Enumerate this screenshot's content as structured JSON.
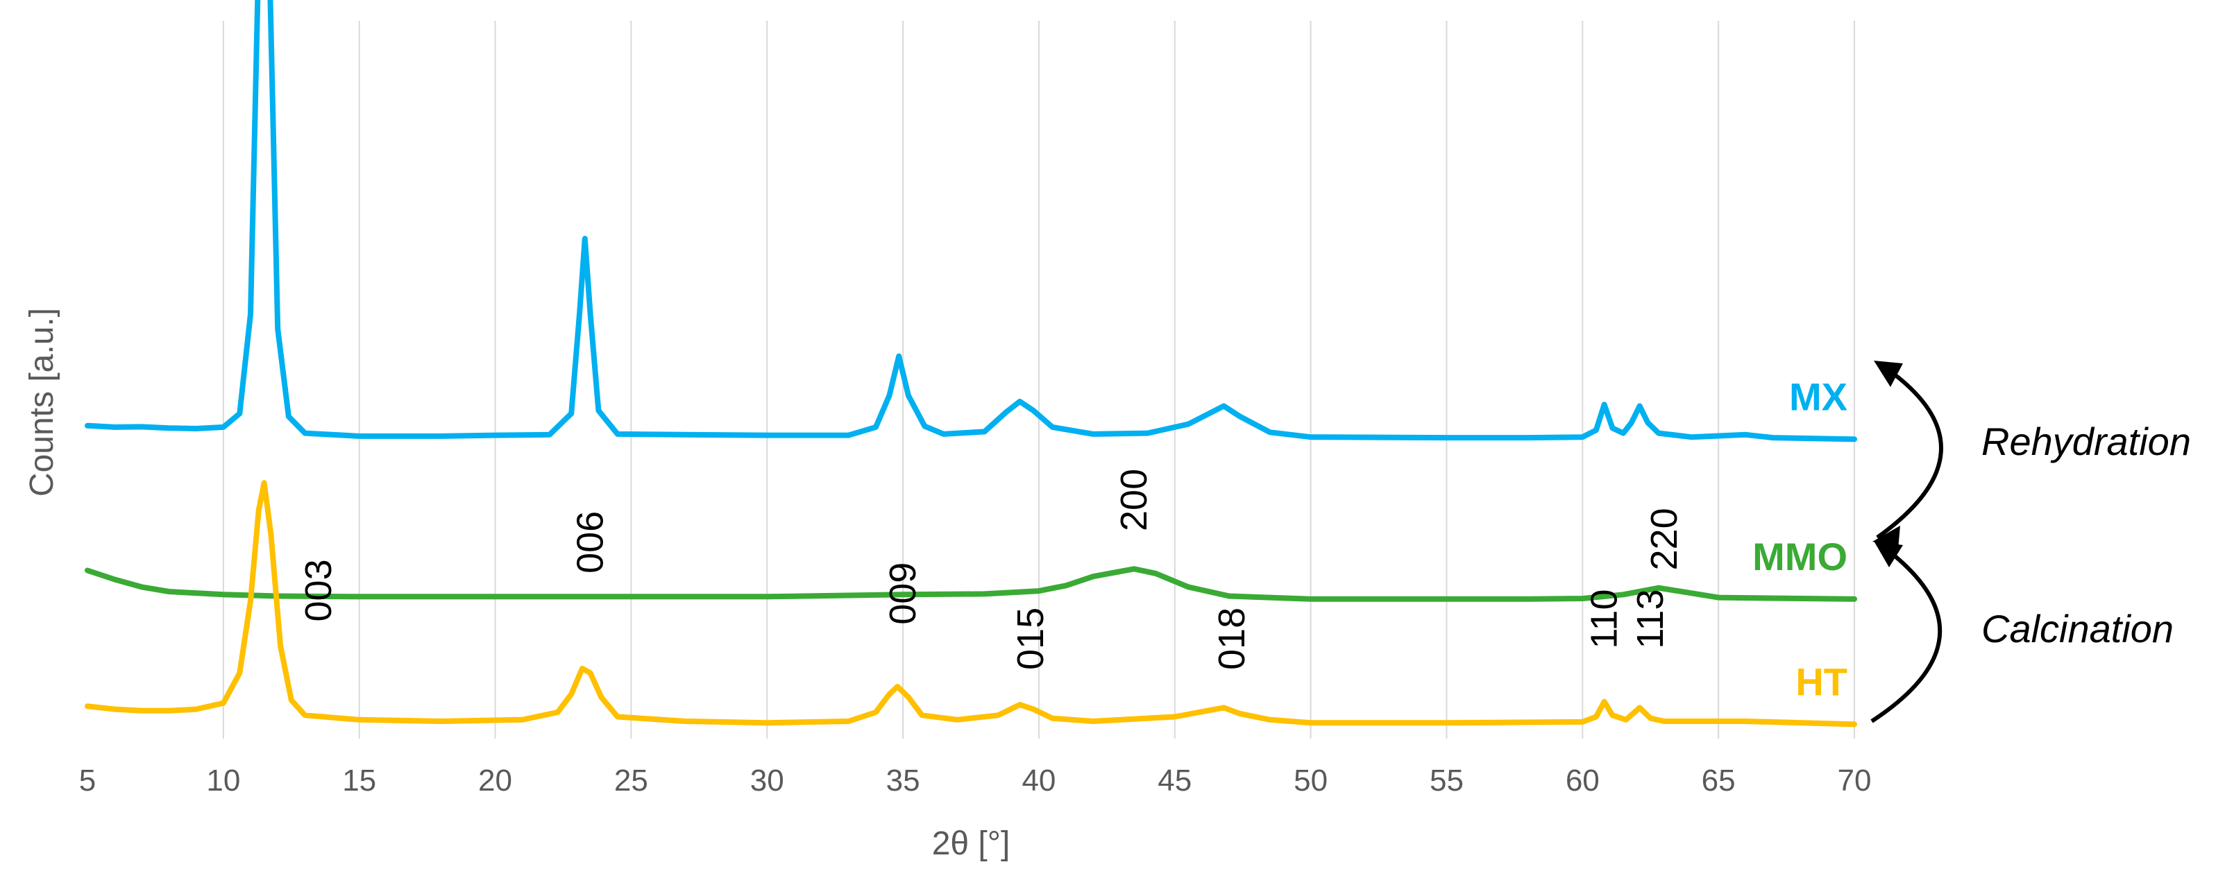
{
  "chart_data": {
    "type": "line",
    "xlabel": "2θ [°]",
    "ylabel": "Counts [a.u.]",
    "xlim": [
      5,
      70
    ],
    "x_ticks": [
      5,
      10,
      15,
      20,
      25,
      30,
      35,
      40,
      45,
      50,
      55,
      60,
      65,
      70
    ],
    "grid": "vertical",
    "y_ticks_shown": false,
    "series": [
      {
        "name": "MX",
        "color": "#00b0f0",
        "points": [
          [
            5,
            0.98
          ],
          [
            6,
            0.975
          ],
          [
            7,
            0.976
          ],
          [
            8,
            0.972
          ],
          [
            9,
            0.97
          ],
          [
            10,
            0.975
          ],
          [
            10.6,
            1.02
          ],
          [
            11,
            1.35
          ],
          [
            11.3,
            2.55
          ],
          [
            11.5,
            3.1
          ],
          [
            11.7,
            2.5
          ],
          [
            12,
            1.3
          ],
          [
            12.4,
            1.01
          ],
          [
            13,
            0.955
          ],
          [
            15,
            0.945
          ],
          [
            18,
            0.945
          ],
          [
            20,
            0.948
          ],
          [
            22,
            0.95
          ],
          [
            22.8,
            1.02
          ],
          [
            23.1,
            1.35
          ],
          [
            23.3,
            1.6
          ],
          [
            23.5,
            1.35
          ],
          [
            23.8,
            1.03
          ],
          [
            24.5,
            0.952
          ],
          [
            27,
            0.95
          ],
          [
            30,
            0.948
          ],
          [
            33,
            0.948
          ],
          [
            34,
            0.975
          ],
          [
            34.5,
            1.08
          ],
          [
            34.85,
            1.21
          ],
          [
            35.2,
            1.08
          ],
          [
            35.8,
            0.978
          ],
          [
            36.5,
            0.952
          ],
          [
            38,
            0.96
          ],
          [
            38.8,
            1.025
          ],
          [
            39.3,
            1.06
          ],
          [
            39.8,
            1.03
          ],
          [
            40.5,
            0.975
          ],
          [
            42,
            0.952
          ],
          [
            44,
            0.955
          ],
          [
            45.5,
            0.985
          ],
          [
            46.8,
            1.045
          ],
          [
            47.4,
            1.01
          ],
          [
            48.5,
            0.958
          ],
          [
            50,
            0.942
          ],
          [
            55,
            0.94
          ],
          [
            58,
            0.94
          ],
          [
            60,
            0.942
          ],
          [
            60.5,
            0.965
          ],
          [
            60.8,
            1.05
          ],
          [
            61.1,
            0.972
          ],
          [
            61.5,
            0.955
          ],
          [
            61.8,
            0.99
          ],
          [
            62.1,
            1.045
          ],
          [
            62.4,
            0.99
          ],
          [
            62.8,
            0.955
          ],
          [
            64,
            0.942
          ],
          [
            66,
            0.95
          ],
          [
            67,
            0.94
          ],
          [
            70,
            0.935
          ]
        ]
      },
      {
        "name": "MMO",
        "color": "#3aaa35",
        "points": [
          [
            5,
            0.5
          ],
          [
            6,
            0.47
          ],
          [
            7,
            0.445
          ],
          [
            8,
            0.43
          ],
          [
            10,
            0.42
          ],
          [
            12,
            0.415
          ],
          [
            15,
            0.413
          ],
          [
            20,
            0.413
          ],
          [
            25,
            0.413
          ],
          [
            30,
            0.413
          ],
          [
            35,
            0.42
          ],
          [
            38,
            0.422
          ],
          [
            40,
            0.432
          ],
          [
            41,
            0.45
          ],
          [
            42,
            0.48
          ],
          [
            43.5,
            0.505
          ],
          [
            44.3,
            0.49
          ],
          [
            45.5,
            0.445
          ],
          [
            47,
            0.415
          ],
          [
            50,
            0.405
          ],
          [
            55,
            0.405
          ],
          [
            58,
            0.405
          ],
          [
            60,
            0.407
          ],
          [
            61.5,
            0.42
          ],
          [
            62.8,
            0.442
          ],
          [
            63.5,
            0.432
          ],
          [
            65,
            0.41
          ],
          [
            70,
            0.405
          ]
        ]
      },
      {
        "name": "HT",
        "color": "#ffc000",
        "points": [
          [
            5,
            0.05
          ],
          [
            6,
            0.04
          ],
          [
            7,
            0.035
          ],
          [
            8,
            0.035
          ],
          [
            9,
            0.04
          ],
          [
            10,
            0.06
          ],
          [
            10.6,
            0.16
          ],
          [
            11,
            0.4
          ],
          [
            11.3,
            0.7
          ],
          [
            11.5,
            0.79
          ],
          [
            11.75,
            0.62
          ],
          [
            12.1,
            0.25
          ],
          [
            12.5,
            0.07
          ],
          [
            13,
            0.02
          ],
          [
            15,
            0.005
          ],
          [
            18,
            0.0
          ],
          [
            21,
            0.005
          ],
          [
            22.3,
            0.03
          ],
          [
            22.8,
            0.09
          ],
          [
            23.2,
            0.175
          ],
          [
            23.5,
            0.16
          ],
          [
            23.9,
            0.08
          ],
          [
            24.5,
            0.015
          ],
          [
            27,
            0.0
          ],
          [
            30,
            -0.005
          ],
          [
            33,
            0.0
          ],
          [
            34,
            0.03
          ],
          [
            34.5,
            0.09
          ],
          [
            34.8,
            0.115
          ],
          [
            35.2,
            0.08
          ],
          [
            35.7,
            0.02
          ],
          [
            37,
            0.005
          ],
          [
            38.5,
            0.02
          ],
          [
            39.3,
            0.055
          ],
          [
            39.8,
            0.04
          ],
          [
            40.5,
            0.01
          ],
          [
            42,
            0.0
          ],
          [
            45,
            0.015
          ],
          [
            46.8,
            0.045
          ],
          [
            47.4,
            0.025
          ],
          [
            48.5,
            0.005
          ],
          [
            50,
            -0.005
          ],
          [
            55,
            -0.005
          ],
          [
            60,
            -0.002
          ],
          [
            60.5,
            0.015
          ],
          [
            60.8,
            0.065
          ],
          [
            61.1,
            0.02
          ],
          [
            61.6,
            0.005
          ],
          [
            62.1,
            0.045
          ],
          [
            62.5,
            0.01
          ],
          [
            63,
            0.0
          ],
          [
            66,
            0.0
          ],
          [
            70,
            -0.01
          ]
        ]
      }
    ],
    "peak_labels": [
      {
        "text": "003",
        "x": 13.5,
        "y": 0.33,
        "color": "#000000"
      },
      {
        "text": "006",
        "x": 23.5,
        "y": 0.49,
        "color": "#000000"
      },
      {
        "text": "009",
        "x": 35.0,
        "y": 0.32,
        "color": "#000000"
      },
      {
        "text": "015",
        "x": 39.7,
        "y": 0.17,
        "color": "#000000"
      },
      {
        "text": "018",
        "x": 47.1,
        "y": 0.17,
        "color": "#000000"
      },
      {
        "text": "110",
        "x": 60.8,
        "y": 0.24,
        "color": "#000000"
      },
      {
        "text": "113",
        "x": 62.5,
        "y": 0.24,
        "color": "#000000"
      },
      {
        "text": "200",
        "x": 43.5,
        "y": 0.63,
        "color": "#000000"
      },
      {
        "text": "220",
        "x": 63.0,
        "y": 0.5,
        "color": "#000000"
      }
    ],
    "process_labels": {
      "rehydration": "Rehydration",
      "calcination": "Calcination"
    }
  }
}
